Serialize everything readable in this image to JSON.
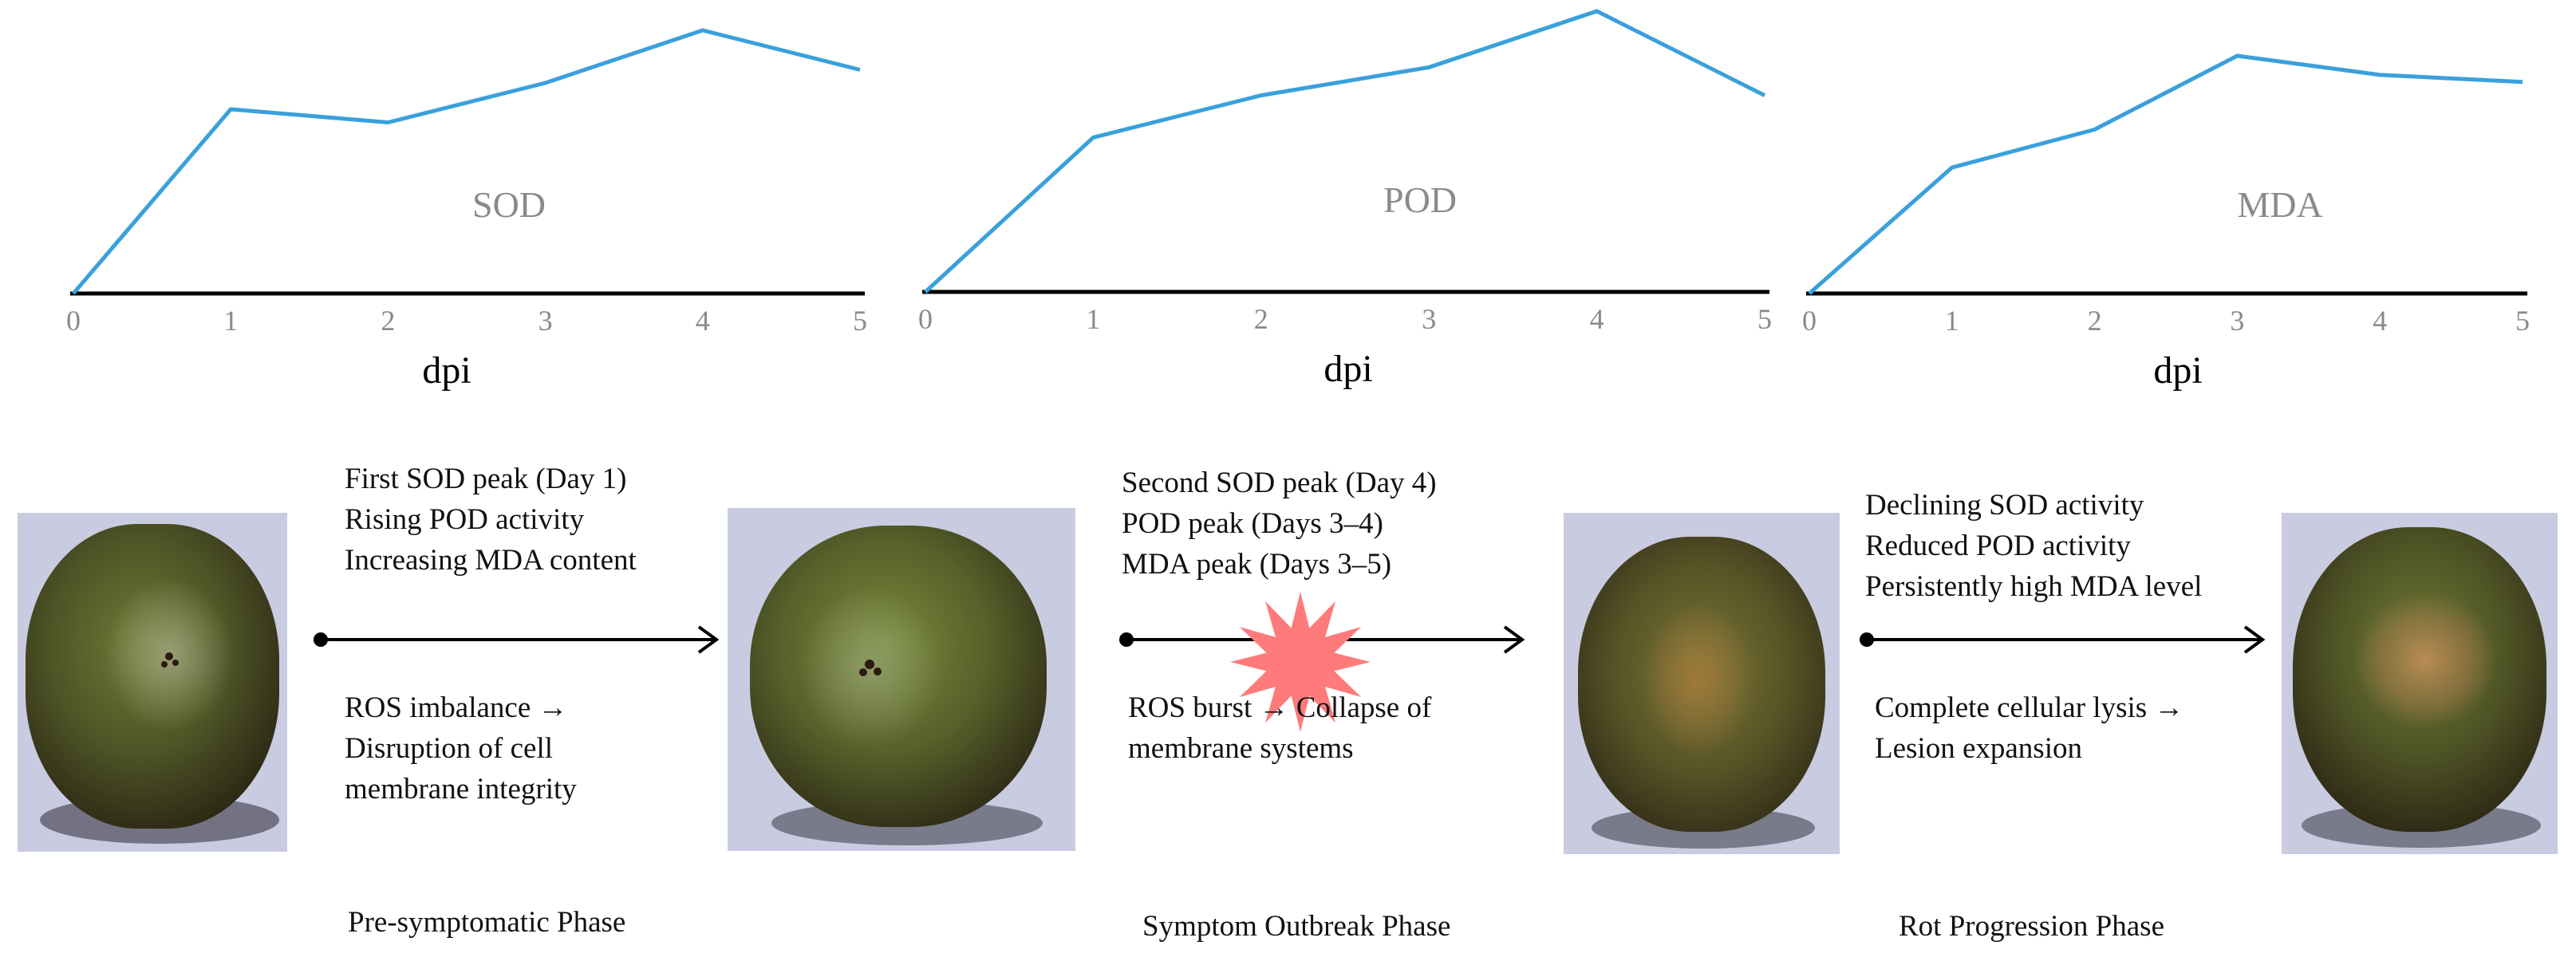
{
  "colors": {
    "line": "#3aa0dc",
    "axis": "#000000",
    "chart_label": "#8a8a8a",
    "tick": "#8a8a8a",
    "burst": "#ff7b7b"
  },
  "chart_data": [
    {
      "type": "line",
      "title": "SOD",
      "xlabel": "dpi",
      "x": [
        0,
        1,
        2,
        3,
        4,
        5
      ],
      "values": [
        0,
        0.7,
        0.65,
        0.8,
        1.0,
        0.85
      ],
      "ylim": [
        0,
        1.0
      ]
    },
    {
      "type": "line",
      "title": "POD",
      "xlabel": "dpi",
      "x": [
        0,
        1,
        2,
        3,
        4,
        5
      ],
      "values": [
        0,
        0.55,
        0.7,
        0.8,
        1.0,
        0.7
      ],
      "ylim": [
        0,
        1.0
      ]
    },
    {
      "type": "line",
      "title": "MDA",
      "xlabel": "dpi",
      "x": [
        0,
        1,
        2,
        3,
        4,
        5
      ],
      "values": [
        0,
        0.53,
        0.69,
        1.0,
        0.92,
        0.89
      ],
      "ylim": [
        0,
        1.0
      ]
    }
  ],
  "stages": [
    {
      "effects": [
        "First SOD peak (Day 1)",
        "Rising POD activity",
        "Increasing MDA content"
      ],
      "outcome": [
        "ROS imbalance →",
        "Disruption of cell",
        "membrane integrity"
      ],
      "phase": "Pre-symptomatic Phase"
    },
    {
      "effects": [
        "Second SOD peak (Day 4)",
        "POD peak (Days 3–4)",
        "MDA peak (Days 3–5)"
      ],
      "outcome": [
        "ROS burst → Collapse of",
        "membrane systems"
      ],
      "phase": "Symptom Outbreak Phase"
    },
    {
      "effects": [
        "Declining SOD activity",
        "Reduced POD activity",
        "Persistently high MDA level"
      ],
      "outcome": [
        "Complete cellular lysis →",
        "Lesion expansion"
      ],
      "phase": "Rot Progression Phase"
    }
  ],
  "fruits": [
    "kiwifruit-day0",
    "kiwifruit-early",
    "kiwifruit-outbreak",
    "kiwifruit-rot"
  ]
}
